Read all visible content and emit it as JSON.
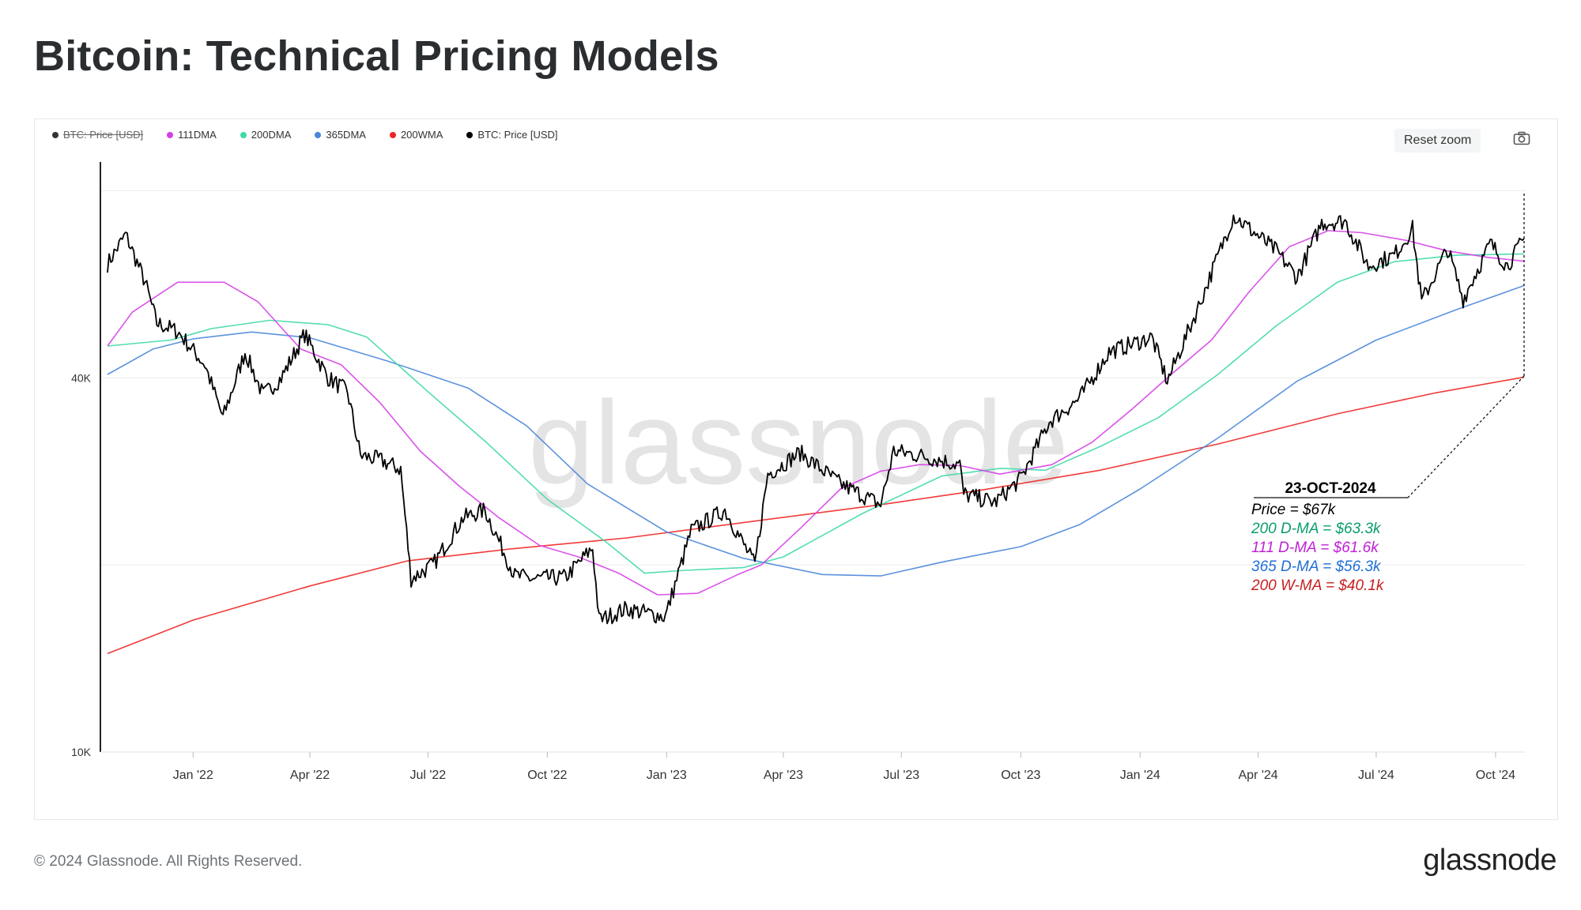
{
  "page": {
    "title": "Bitcoin: Technical Pricing Models",
    "footer": "© 2024 Glassnode. All Rights Reserved.",
    "brand": "glassnode",
    "watermark": "glassnode"
  },
  "toolbar": {
    "reset_zoom_label": "Reset zoom",
    "camera_icon": "camera-icon"
  },
  "legend": [
    {
      "label": "BTC: Price [USD]",
      "color": "#333333",
      "hidden": true
    },
    {
      "label": "111DMA",
      "color": "#d63fe8",
      "hidden": false
    },
    {
      "label": "200DMA",
      "color": "#3fd9a8",
      "hidden": false
    },
    {
      "label": "365DMA",
      "color": "#4a86d9",
      "hidden": false
    },
    {
      "label": "200WMA",
      "color": "#ef2525",
      "hidden": false
    },
    {
      "label": "BTC: Price [USD]",
      "color": "#000000",
      "hidden": false
    }
  ],
  "annotation": {
    "date": "23-OCT-2024",
    "lines": [
      {
        "text": "Price = $67k",
        "color": "#000000"
      },
      {
        "text": "200 D-MA = $63.3k",
        "color": "#0a9e6a"
      },
      {
        "text": "111 D-MA = $61.6k",
        "color": "#c020d6"
      },
      {
        "text": "365 D-MA = $56.3k",
        "color": "#1f6fd6"
      },
      {
        "text": "200 W-MA = $40.1k",
        "color": "#c81e1e"
      }
    ]
  },
  "chart_data": {
    "type": "line",
    "title": "Bitcoin: Technical Pricing Models",
    "y_scale": "log",
    "ylim": [
      10000,
      89000
    ],
    "y_ticks": [
      {
        "value": 10000,
        "label": "10K"
      },
      {
        "value": 40000,
        "label": "40K"
      }
    ],
    "x_range": [
      "2021-10-27",
      "2024-10-23"
    ],
    "x_ticks": [
      {
        "date": "2022-01-01",
        "label": "Jan '22"
      },
      {
        "date": "2022-04-01",
        "label": "Apr '22"
      },
      {
        "date": "2022-07-01",
        "label": "Jul '22"
      },
      {
        "date": "2022-10-01",
        "label": "Oct '22"
      },
      {
        "date": "2023-01-01",
        "label": "Jan '23"
      },
      {
        "date": "2023-04-01",
        "label": "Apr '23"
      },
      {
        "date": "2023-07-01",
        "label": "Jul '23"
      },
      {
        "date": "2023-10-01",
        "label": "Oct '23"
      },
      {
        "date": "2024-01-01",
        "label": "Jan '24"
      },
      {
        "date": "2024-04-01",
        "label": "Apr '24"
      },
      {
        "date": "2024-07-01",
        "label": "Jul '24"
      },
      {
        "date": "2024-10-01",
        "label": "Oct '24"
      }
    ],
    "series": [
      {
        "name": "200WMA",
        "color": "#ef2525",
        "points": [
          [
            "2021-10-27",
            14400
          ],
          [
            "2022-01-01",
            16300
          ],
          [
            "2022-04-01",
            18500
          ],
          [
            "2022-06-15",
            20300
          ],
          [
            "2022-09-01",
            21200
          ],
          [
            "2022-12-01",
            22100
          ],
          [
            "2023-03-15",
            23600
          ],
          [
            "2023-06-15",
            25000
          ],
          [
            "2023-09-01",
            26400
          ],
          [
            "2023-12-01",
            28400
          ],
          [
            "2024-03-01",
            31300
          ],
          [
            "2024-06-01",
            35000
          ],
          [
            "2024-08-15",
            37800
          ],
          [
            "2024-10-23",
            40100
          ]
        ]
      },
      {
        "name": "365DMA",
        "color": "#4a86d9",
        "points": [
          [
            "2021-10-27",
            40500
          ],
          [
            "2021-12-01",
            44500
          ],
          [
            "2022-01-01",
            46200
          ],
          [
            "2022-02-15",
            47400
          ],
          [
            "2022-04-01",
            46400
          ],
          [
            "2022-06-01",
            42500
          ],
          [
            "2022-08-01",
            38500
          ],
          [
            "2022-09-15",
            33500
          ],
          [
            "2022-11-01",
            27000
          ],
          [
            "2023-01-01",
            22600
          ],
          [
            "2023-03-01",
            20500
          ],
          [
            "2023-05-01",
            19300
          ],
          [
            "2023-06-15",
            19200
          ],
          [
            "2023-08-01",
            20200
          ],
          [
            "2023-10-01",
            21400
          ],
          [
            "2023-11-15",
            23200
          ],
          [
            "2024-01-01",
            26500
          ],
          [
            "2024-03-01",
            32000
          ],
          [
            "2024-05-01",
            39500
          ],
          [
            "2024-07-01",
            46000
          ],
          [
            "2024-09-01",
            51500
          ],
          [
            "2024-10-23",
            56300
          ]
        ]
      },
      {
        "name": "200DMA",
        "color": "#3fd9a8",
        "points": [
          [
            "2021-10-27",
            45000
          ],
          [
            "2021-12-15",
            46000
          ],
          [
            "2022-01-15",
            48000
          ],
          [
            "2022-03-01",
            49500
          ],
          [
            "2022-04-15",
            48700
          ],
          [
            "2022-05-15",
            46500
          ],
          [
            "2022-07-01",
            38000
          ],
          [
            "2022-08-15",
            31500
          ],
          [
            "2022-10-01",
            25500
          ],
          [
            "2022-11-15",
            21800
          ],
          [
            "2022-12-15",
            19400
          ],
          [
            "2023-01-15",
            19600
          ],
          [
            "2023-03-01",
            19800
          ],
          [
            "2023-04-01",
            20600
          ],
          [
            "2023-06-01",
            24200
          ],
          [
            "2023-08-01",
            27800
          ],
          [
            "2023-09-15",
            28600
          ],
          [
            "2023-10-20",
            28400
          ],
          [
            "2023-12-01",
            31000
          ],
          [
            "2024-01-15",
            34500
          ],
          [
            "2024-03-01",
            40500
          ],
          [
            "2024-04-15",
            48500
          ],
          [
            "2024-06-01",
            57000
          ],
          [
            "2024-07-15",
            61500
          ],
          [
            "2024-09-01",
            63000
          ],
          [
            "2024-10-23",
            63300
          ]
        ]
      },
      {
        "name": "111DMA",
        "color": "#d63fe8",
        "points": [
          [
            "2021-10-27",
            45000
          ],
          [
            "2021-11-15",
            51000
          ],
          [
            "2021-12-20",
            57000
          ],
          [
            "2022-01-25",
            57000
          ],
          [
            "2022-02-20",
            53000
          ],
          [
            "2022-03-25",
            44500
          ],
          [
            "2022-04-25",
            42000
          ],
          [
            "2022-05-25",
            36500
          ],
          [
            "2022-06-25",
            30500
          ],
          [
            "2022-07-25",
            26800
          ],
          [
            "2022-08-25",
            23800
          ],
          [
            "2022-09-25",
            21500
          ],
          [
            "2022-10-25",
            20600
          ],
          [
            "2022-11-25",
            19400
          ],
          [
            "2022-12-25",
            17900
          ],
          [
            "2023-01-25",
            18000
          ],
          [
            "2023-02-25",
            19300
          ],
          [
            "2023-03-15",
            20000
          ],
          [
            "2023-04-15",
            23000
          ],
          [
            "2023-05-15",
            26500
          ],
          [
            "2023-06-15",
            28300
          ],
          [
            "2023-07-15",
            29000
          ],
          [
            "2023-08-15",
            28900
          ],
          [
            "2023-09-15",
            28000
          ],
          [
            "2023-10-25",
            29000
          ],
          [
            "2023-11-25",
            31500
          ],
          [
            "2023-12-25",
            35500
          ],
          [
            "2024-01-25",
            40500
          ],
          [
            "2024-02-25",
            46000
          ],
          [
            "2024-03-25",
            55000
          ],
          [
            "2024-04-25",
            65000
          ],
          [
            "2024-05-25",
            69000
          ],
          [
            "2024-06-20",
            68500
          ],
          [
            "2024-07-25",
            66500
          ],
          [
            "2024-08-25",
            64000
          ],
          [
            "2024-09-25",
            62500
          ],
          [
            "2024-10-23",
            61600
          ]
        ]
      },
      {
        "name": "BTC: Price [USD]",
        "color": "#000000",
        "points": [
          [
            "2021-10-27",
            61000
          ],
          [
            "2021-11-10",
            68000
          ],
          [
            "2021-11-25",
            57000
          ],
          [
            "2021-12-04",
            49000
          ],
          [
            "2021-12-20",
            47500
          ],
          [
            "2022-01-10",
            42000
          ],
          [
            "2022-01-24",
            34500
          ],
          [
            "2022-02-10",
            44000
          ],
          [
            "2022-02-24",
            37500
          ],
          [
            "2022-03-10",
            40000
          ],
          [
            "2022-03-28",
            47000
          ],
          [
            "2022-04-15",
            40000
          ],
          [
            "2022-04-30",
            38000
          ],
          [
            "2022-05-10",
            30000
          ],
          [
            "2022-05-25",
            29500
          ],
          [
            "2022-06-10",
            28500
          ],
          [
            "2022-06-18",
            19000
          ],
          [
            "2022-07-05",
            20000
          ],
          [
            "2022-07-28",
            23800
          ],
          [
            "2022-08-14",
            24500
          ],
          [
            "2022-09-06",
            19200
          ],
          [
            "2022-09-20",
            19000
          ],
          [
            "2022-10-15",
            19100
          ],
          [
            "2022-11-05",
            21300
          ],
          [
            "2022-11-10",
            16300
          ],
          [
            "2022-12-01",
            17000
          ],
          [
            "2022-12-31",
            16500
          ],
          [
            "2023-01-20",
            22700
          ],
          [
            "2023-02-15",
            24500
          ],
          [
            "2023-03-10",
            20000
          ],
          [
            "2023-03-20",
            28000
          ],
          [
            "2023-04-14",
            30300
          ],
          [
            "2023-05-15",
            27000
          ],
          [
            "2023-06-15",
            25000
          ],
          [
            "2023-06-25",
            30500
          ],
          [
            "2023-07-15",
            30000
          ],
          [
            "2023-08-15",
            29000
          ],
          [
            "2023-08-18",
            26000
          ],
          [
            "2023-09-11",
            25200
          ],
          [
            "2023-10-01",
            27500
          ],
          [
            "2023-10-23",
            34000
          ],
          [
            "2023-11-15",
            37000
          ],
          [
            "2023-12-08",
            44000
          ],
          [
            "2024-01-10",
            46500
          ],
          [
            "2024-01-22",
            39500
          ],
          [
            "2024-02-15",
            52000
          ],
          [
            "2024-03-13",
            73000
          ],
          [
            "2024-04-15",
            64000
          ],
          [
            "2024-05-01",
            58000
          ],
          [
            "2024-05-20",
            71000
          ],
          [
            "2024-06-07",
            71500
          ],
          [
            "2024-06-25",
            60500
          ],
          [
            "2024-07-15",
            63000
          ],
          [
            "2024-07-29",
            69500
          ],
          [
            "2024-08-05",
            53000
          ],
          [
            "2024-08-25",
            64500
          ],
          [
            "2024-09-06",
            53500
          ],
          [
            "2024-09-27",
            65800
          ],
          [
            "2024-10-10",
            60500
          ],
          [
            "2024-10-23",
            67000
          ]
        ]
      }
    ]
  }
}
